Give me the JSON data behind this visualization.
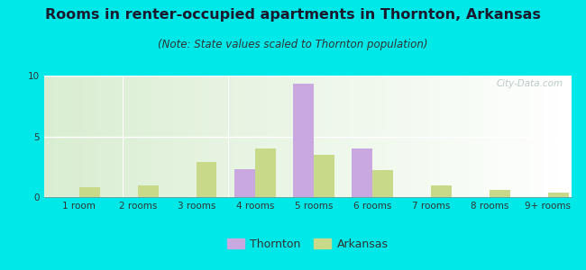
{
  "title": "Rooms in renter-occupied apartments in Thornton, Arkansas",
  "subtitle": "(Note: State values scaled to Thornton population)",
  "categories": [
    "1 room",
    "2 rooms",
    "3 rooms",
    "4 rooms",
    "5 rooms",
    "6 rooms",
    "7 rooms",
    "8 rooms",
    "9+ rooms"
  ],
  "thornton": [
    0,
    0,
    0,
    2.3,
    9.3,
    4.0,
    0,
    0,
    0
  ],
  "arkansas": [
    0.8,
    1.0,
    2.9,
    4.0,
    3.5,
    2.2,
    1.0,
    0.6,
    0.4
  ],
  "thornton_color": "#c9a8e0",
  "arkansas_color": "#c8d98a",
  "bar_width": 0.35,
  "ylim": [
    0,
    10
  ],
  "yticks": [
    0,
    5,
    10
  ],
  "bg_outer": "#00e8e8",
  "title_fontsize": 11.5,
  "subtitle_fontsize": 8.5,
  "tick_fontsize": 7.5,
  "legend_fontsize": 9,
  "watermark_text": "City-Data.com",
  "watermark_color": "#b0c0c0"
}
